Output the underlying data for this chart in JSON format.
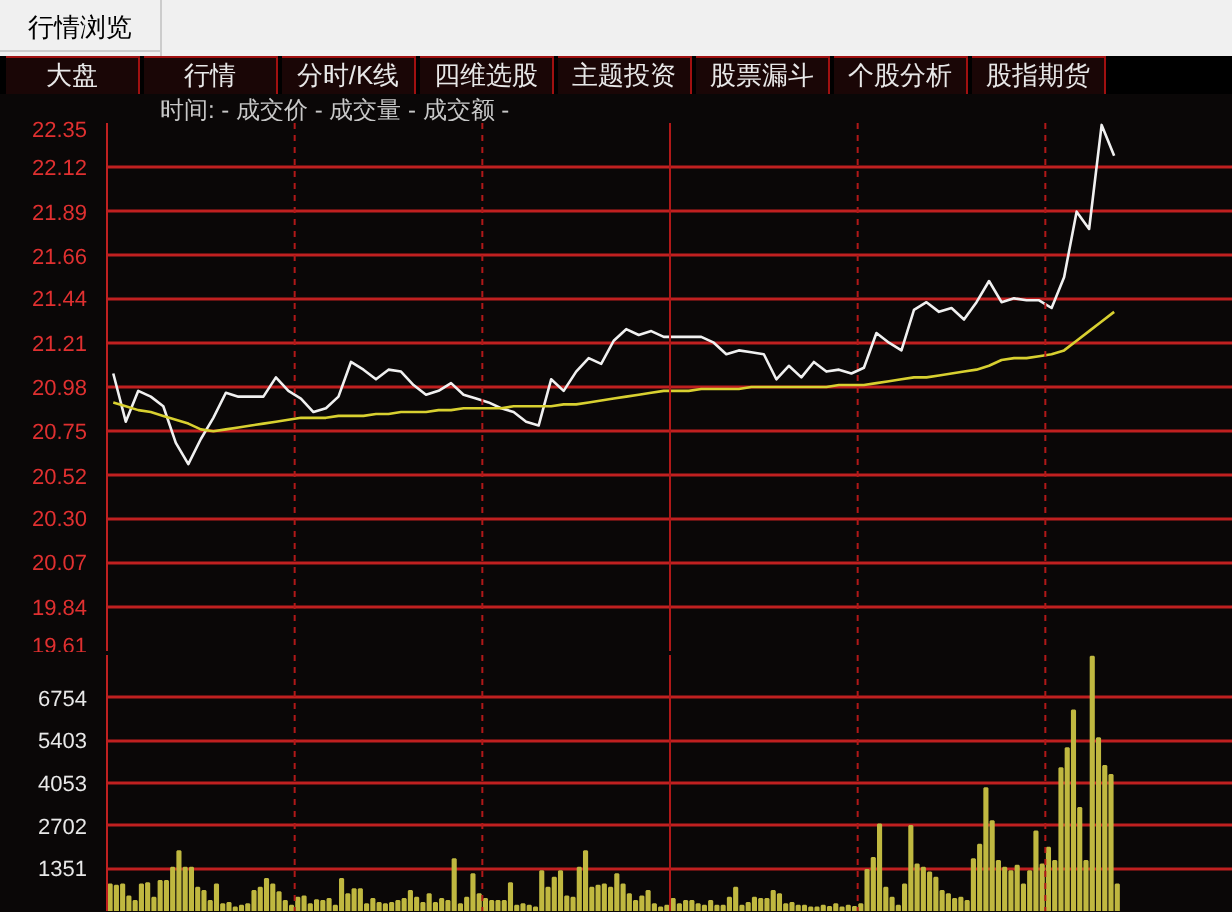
{
  "chart_data": [
    {
      "type": "line",
      "annotations": [
        "行情浏览",
        "大盘",
        "行情",
        "分时/K线",
        "四维选股",
        "主题投资",
        "股票漏斗",
        "个股分析",
        "股指期货",
        "时间: - 成交价 - 成交量 - 成交额 -"
      ],
      "categories": [
        null,
        null,
        null,
        null,
        null,
        null,
        null,
        null,
        null,
        null,
        null,
        null,
        null,
        null,
        null,
        null,
        null,
        null,
        null,
        null,
        null,
        null,
        null,
        null,
        null,
        null,
        null,
        null,
        null,
        null,
        null,
        null,
        null,
        null,
        null,
        null,
        null,
        null,
        null,
        null,
        null,
        null,
        null,
        null,
        null,
        null,
        null,
        null,
        null,
        null,
        null,
        null,
        null,
        null,
        null,
        null,
        null,
        null,
        null,
        null,
        null,
        null,
        null,
        null,
        null,
        null,
        null,
        null,
        null,
        null,
        null,
        null,
        null,
        null,
        null,
        null,
        null,
        null,
        null,
        null,
        null,
        null,
        null,
        null,
        null,
        null,
        null,
        null,
        null,
        null
      ],
      "series": [
        {
          "color": "#f0f0f0",
          "values": [
            21.05,
            20.8,
            20.96,
            20.93,
            20.88,
            20.69,
            20.58,
            20.71,
            20.82,
            20.95,
            20.93,
            20.93,
            20.93,
            21.03,
            20.96,
            20.92,
            20.85,
            20.87,
            20.93,
            21.11,
            21.07,
            21.02,
            21.07,
            21.06,
            20.99,
            20.94,
            20.96,
            21.0,
            20.94,
            20.92,
            20.9,
            20.87,
            20.85,
            20.8,
            20.78,
            21.02,
            20.96,
            21.06,
            21.13,
            21.1,
            21.22,
            21.28,
            21.25,
            21.27,
            21.24,
            21.24,
            21.24,
            21.24,
            21.21,
            21.15,
            21.17,
            21.16,
            21.15,
            21.02,
            21.09,
            21.03,
            21.11,
            21.06,
            21.07,
            21.05,
            21.08,
            21.26,
            21.21,
            21.17,
            21.38,
            21.42,
            21.37,
            21.39,
            21.33,
            21.42,
            21.53,
            21.42,
            21.44,
            21.43,
            21.43,
            21.39,
            21.55,
            21.89,
            21.8,
            22.34,
            22.18,
            null,
            null,
            null,
            null,
            null,
            null,
            null,
            null,
            null
          ]
        },
        {
          "color": "#d8d030",
          "values": [
            20.9,
            20.88,
            20.86,
            20.85,
            20.83,
            20.81,
            20.79,
            20.76,
            20.75,
            20.76,
            20.77,
            20.78,
            20.79,
            20.8,
            20.81,
            20.82,
            20.82,
            20.82,
            20.83,
            20.83,
            20.83,
            20.84,
            20.84,
            20.85,
            20.85,
            20.85,
            20.86,
            20.86,
            20.87,
            20.87,
            20.87,
            20.87,
            20.88,
            20.88,
            20.88,
            20.88,
            20.89,
            20.89,
            20.9,
            20.91,
            20.92,
            20.93,
            20.94,
            20.95,
            20.96,
            20.96,
            20.96,
            20.97,
            20.97,
            20.97,
            20.97,
            20.98,
            20.98,
            20.98,
            20.98,
            20.98,
            20.98,
            20.98,
            20.99,
            20.99,
            20.99,
            21.0,
            21.01,
            21.02,
            21.03,
            21.03,
            21.04,
            21.05,
            21.06,
            21.07,
            21.09,
            21.12,
            21.13,
            21.13,
            21.14,
            21.15,
            21.17,
            21.22,
            21.27,
            21.32,
            21.37,
            null,
            null,
            null,
            null,
            null,
            null,
            null,
            null,
            null
          ]
        }
      ],
      "ylim": [
        19.61,
        22.35
      ],
      "yticks": [
        22.35,
        22.12,
        21.89,
        21.66,
        21.44,
        21.21,
        20.98,
        20.75,
        20.52,
        {
          "value": 20.3,
          "label": "20.30"
        },
        20.07,
        19.84,
        19.61
      ],
      "grid": true,
      "tick_labels": "y"
    },
    {
      "type": "bar",
      "color": "#c0b840",
      "categories": [
        null,
        null,
        null,
        null,
        null,
        null,
        null,
        null,
        null,
        null,
        null,
        null,
        null,
        null,
        null,
        null,
        null,
        null,
        null,
        null,
        null,
        null,
        null,
        null,
        null,
        null,
        null,
        null,
        null,
        null,
        null,
        null,
        null,
        null,
        null,
        null,
        null,
        null,
        null,
        null,
        null,
        null,
        null,
        null,
        null,
        null,
        null,
        null,
        null,
        null,
        null,
        null,
        null,
        null,
        null,
        null,
        null,
        null,
        null,
        null,
        null,
        null,
        null,
        null,
        null,
        null,
        null,
        null,
        null,
        null,
        null,
        null,
        null,
        null,
        null,
        null,
        null,
        null,
        null,
        null,
        null,
        null,
        null,
        null,
        null,
        null,
        null,
        null,
        null,
        null,
        null,
        null,
        null,
        null,
        null,
        null,
        null,
        null,
        null,
        null,
        null,
        null,
        null,
        null,
        null,
        null,
        null,
        null,
        null,
        null,
        null,
        null,
        null,
        null,
        null,
        null,
        null,
        null,
        null,
        null,
        null,
        null,
        null,
        null,
        null,
        null,
        null,
        null,
        null,
        null,
        null,
        null,
        null,
        null,
        null,
        null,
        null,
        null,
        null,
        null,
        null,
        null,
        null,
        null,
        null,
        null,
        null,
        null,
        null,
        null,
        null,
        null,
        null,
        null,
        null,
        null,
        null,
        null,
        null,
        null,
        null,
        null,
        null,
        null,
        null,
        null,
        null,
        null,
        null,
        null,
        null,
        null,
        null,
        null,
        null,
        null,
        null,
        null,
        null,
        null
      ],
      "values": [
        840,
        800,
        840,
        460,
        320,
        840,
        880,
        420,
        950,
        950,
        1370,
        1890,
        1370,
        1370,
        740,
        630,
        320,
        840,
        210,
        250,
        110,
        170,
        210,
        630,
        740,
        1010,
        840,
        590,
        320,
        170,
        420,
        460,
        210,
        340,
        320,
        380,
        170,
        1010,
        530,
        690,
        690,
        210,
        380,
        250,
        210,
        250,
        320,
        380,
        630,
        420,
        250,
        530,
        250,
        380,
        320,
        1640,
        210,
        420,
        1160,
        530,
        380,
        320,
        320,
        320,
        880,
        170,
        210,
        170,
        110,
        1260,
        740,
        1050,
        1260,
        460,
        420,
        1370,
        1890,
        740,
        800,
        840,
        740,
        1160,
        840,
        530,
        320,
        460,
        630,
        210,
        110,
        170,
        380,
        210,
        320,
        320,
        210,
        170,
        320,
        170,
        170,
        420,
        740,
        170,
        250,
        420,
        380,
        380,
        630,
        530,
        210,
        250,
        170,
        170,
        110,
        110,
        170,
        130,
        210,
        110,
        170,
        130,
        210,
        1300,
        1680,
        2740,
        740,
        420,
        170,
        840,
        2690,
        1470,
        1370,
        1220,
        1050,
        630,
        530,
        380,
        420,
        320,
        1640,
        2100,
        3890,
        2840,
        1580,
        1370,
        1260,
        1430,
        840,
        1260,
        2520,
        1470,
        2000,
        1580,
        4520,
        5150,
        6350,
        3260,
        1580,
        8050,
        5470,
        4590,
        4310,
        840,
        null,
        null,
        null,
        null,
        null,
        null,
        null,
        null,
        null,
        null,
        null,
        null,
        null,
        null,
        null,
        null,
        null,
        null
      ],
      "ylim": [
        0,
        8106
      ],
      "yticks": [
        1351,
        2702,
        4053,
        5403,
        6754
      ],
      "grid": true,
      "tick_labels": "y"
    }
  ]
}
